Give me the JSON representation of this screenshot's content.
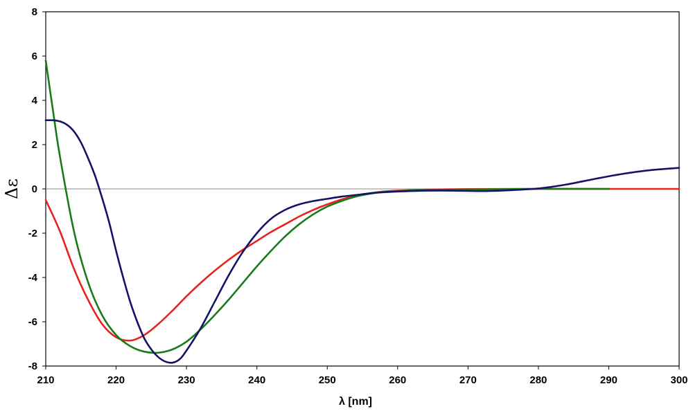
{
  "chart_data": {
    "type": "line",
    "title": "",
    "xlabel": "λ [nm]",
    "ylabel": "Δε",
    "xlim": [
      210,
      300
    ],
    "ylim": [
      -8,
      8
    ],
    "x_ticks": [
      210,
      220,
      230,
      240,
      250,
      260,
      270,
      280,
      290,
      300
    ],
    "y_ticks": [
      -8,
      -6,
      -4,
      -2,
      0,
      2,
      4,
      6,
      8
    ],
    "grid": false,
    "legend": "none",
    "series": [
      {
        "color": "#e8231e",
        "x": [
          210,
          212,
          214,
          216,
          218,
          220,
          222,
          224,
          226,
          228,
          230,
          232,
          234,
          236,
          238,
          240,
          242,
          244,
          246,
          248,
          250,
          252,
          254,
          256,
          258,
          260,
          265,
          270,
          280,
          290,
          300
        ],
        "y": [
          -0.5,
          -1.9,
          -3.6,
          -5.0,
          -6.1,
          -6.7,
          -6.85,
          -6.6,
          -6.1,
          -5.5,
          -4.85,
          -4.25,
          -3.7,
          -3.2,
          -2.75,
          -2.35,
          -1.95,
          -1.6,
          -1.25,
          -0.95,
          -0.7,
          -0.48,
          -0.32,
          -0.2,
          -0.12,
          -0.08,
          -0.03,
          -0.01,
          0.0,
          0.0,
          0.0
        ]
      },
      {
        "color": "#1a7a1a",
        "x": [
          210,
          211,
          212,
          214,
          216,
          218,
          220,
          222,
          224,
          226,
          228,
          230,
          232,
          234,
          236,
          238,
          240,
          242,
          244,
          246,
          248,
          250,
          252,
          254,
          256,
          258,
          260,
          262,
          265,
          270,
          280,
          290
        ],
        "y": [
          5.8,
          3.6,
          1.5,
          -1.9,
          -4.2,
          -5.7,
          -6.6,
          -7.1,
          -7.35,
          -7.4,
          -7.25,
          -6.9,
          -6.35,
          -5.7,
          -5.0,
          -4.25,
          -3.5,
          -2.8,
          -2.15,
          -1.6,
          -1.15,
          -0.8,
          -0.55,
          -0.35,
          -0.22,
          -0.14,
          -0.1,
          -0.07,
          -0.05,
          -0.03,
          0.0,
          0.0
        ]
      },
      {
        "color": "#141466",
        "x": [
          210,
          211,
          212,
          213,
          214,
          215,
          216,
          217,
          218,
          219,
          220,
          221,
          222,
          223,
          224,
          225,
          226,
          227,
          228,
          229,
          230,
          232,
          234,
          236,
          238,
          240,
          242,
          244,
          246,
          248,
          250,
          252,
          254,
          256,
          258,
          260,
          264,
          268,
          272,
          276,
          280,
          284,
          288,
          292,
          296,
          300
        ],
        "y": [
          3.1,
          3.1,
          3.05,
          2.9,
          2.6,
          2.1,
          1.4,
          0.6,
          -0.4,
          -1.5,
          -2.8,
          -4.0,
          -5.1,
          -6.0,
          -6.75,
          -7.25,
          -7.6,
          -7.8,
          -7.85,
          -7.7,
          -7.3,
          -6.3,
          -5.1,
          -3.9,
          -2.85,
          -2.0,
          -1.35,
          -0.95,
          -0.7,
          -0.55,
          -0.45,
          -0.35,
          -0.28,
          -0.2,
          -0.15,
          -0.12,
          -0.08,
          -0.08,
          -0.1,
          -0.06,
          0.02,
          0.2,
          0.45,
          0.68,
          0.85,
          0.95
        ]
      }
    ]
  }
}
